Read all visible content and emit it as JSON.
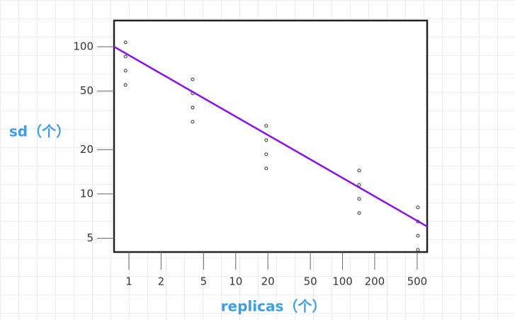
{
  "chart_data": {
    "type": "scatter",
    "xlabel": "replicas（个）",
    "ylabel": "sd（个）",
    "xscale": "log",
    "yscale": "log",
    "xlim": [
      0.726,
      620
    ],
    "ylim": [
      4.03,
      150.6
    ],
    "xticks": [
      1,
      2,
      5,
      10,
      20,
      50,
      100,
      200,
      500
    ],
    "yticks": [
      5,
      10,
      20,
      50,
      100
    ],
    "series": [
      {
        "type": "scatter",
        "color": "#333333",
        "x": [
          0.93,
          0.93,
          0.93,
          0.93,
          3.95,
          3.95,
          3.95,
          3.95,
          19.3,
          19.3,
          19.3,
          19.3,
          143,
          143,
          143,
          143,
          508,
          508,
          508,
          508
        ],
        "values": [
          107,
          85.7,
          68.7,
          55,
          60,
          48.2,
          38.6,
          30.9,
          29,
          23.2,
          18.6,
          14.9,
          14.4,
          11.5,
          9.25,
          7.41,
          8.11,
          6.49,
          5.2,
          4.17
        ]
      },
      {
        "type": "line",
        "color": "#8a0ff0",
        "x": [
          0.726,
          620
        ],
        "values": [
          100,
          6.01
        ]
      }
    ]
  }
}
